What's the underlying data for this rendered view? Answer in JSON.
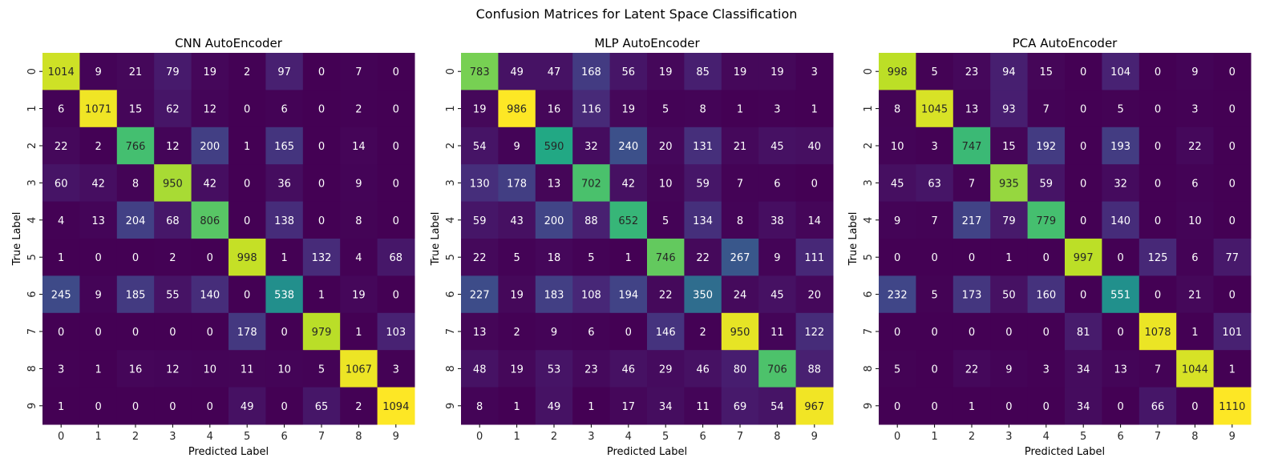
{
  "suptitle": "Confusion Matrices for Latent Space Classification",
  "colors": {
    "colormap": "viridis",
    "light_text": "#ffffff",
    "dark_text": "#262626",
    "axis_text": "#262626"
  },
  "chart_data": [
    {
      "type": "heatmap",
      "title": "CNN AutoEncoder",
      "xlabel": "Predicted Label",
      "ylabel": "True Label",
      "x_ticks": [
        "0",
        "1",
        "2",
        "3",
        "4",
        "5",
        "6",
        "7",
        "8",
        "9"
      ],
      "y_ticks": [
        "0",
        "1",
        "2",
        "3",
        "4",
        "5",
        "6",
        "7",
        "8",
        "9"
      ],
      "vmin": 0,
      "vmax": 1094,
      "matrix": [
        [
          1014,
          9,
          21,
          79,
          19,
          2,
          97,
          0,
          7,
          0
        ],
        [
          6,
          1071,
          15,
          62,
          12,
          0,
          6,
          0,
          2,
          0
        ],
        [
          22,
          2,
          766,
          12,
          200,
          1,
          165,
          0,
          14,
          0
        ],
        [
          60,
          42,
          8,
          950,
          42,
          0,
          36,
          0,
          9,
          0
        ],
        [
          4,
          13,
          204,
          68,
          806,
          0,
          138,
          0,
          8,
          0
        ],
        [
          1,
          0,
          0,
          2,
          0,
          998,
          1,
          132,
          4,
          68
        ],
        [
          245,
          9,
          185,
          55,
          140,
          0,
          538,
          1,
          19,
          0
        ],
        [
          0,
          0,
          0,
          0,
          0,
          178,
          0,
          979,
          1,
          103
        ],
        [
          3,
          1,
          16,
          12,
          10,
          11,
          10,
          5,
          1067,
          3
        ],
        [
          1,
          0,
          0,
          0,
          0,
          49,
          0,
          65,
          2,
          1094
        ]
      ]
    },
    {
      "type": "heatmap",
      "title": "MLP AutoEncoder",
      "xlabel": "Predicted Label",
      "ylabel": "True Label",
      "x_ticks": [
        "0",
        "1",
        "2",
        "3",
        "4",
        "5",
        "6",
        "7",
        "8",
        "9"
      ],
      "y_ticks": [
        "0",
        "1",
        "2",
        "3",
        "4",
        "5",
        "6",
        "7",
        "8",
        "9"
      ],
      "vmin": 0,
      "vmax": 986,
      "matrix": [
        [
          783,
          49,
          47,
          168,
          56,
          19,
          85,
          19,
          19,
          3
        ],
        [
          19,
          986,
          16,
          116,
          19,
          5,
          8,
          1,
          3,
          1
        ],
        [
          54,
          9,
          590,
          32,
          240,
          20,
          131,
          21,
          45,
          40
        ],
        [
          130,
          178,
          13,
          702,
          42,
          10,
          59,
          7,
          6,
          0
        ],
        [
          59,
          43,
          200,
          88,
          652,
          5,
          134,
          8,
          38,
          14
        ],
        [
          22,
          5,
          18,
          5,
          1,
          746,
          22,
          267,
          9,
          111
        ],
        [
          227,
          19,
          183,
          108,
          194,
          22,
          350,
          24,
          45,
          20
        ],
        [
          13,
          2,
          9,
          6,
          0,
          146,
          2,
          950,
          11,
          122
        ],
        [
          48,
          19,
          53,
          23,
          46,
          29,
          46,
          80,
          706,
          88
        ],
        [
          8,
          1,
          49,
          1,
          17,
          34,
          11,
          69,
          54,
          967
        ]
      ]
    },
    {
      "type": "heatmap",
      "title": "PCA AutoEncoder",
      "xlabel": "Predicted Label",
      "ylabel": "True Label",
      "x_ticks": [
        "0",
        "1",
        "2",
        "3",
        "4",
        "5",
        "6",
        "7",
        "8",
        "9"
      ],
      "y_ticks": [
        "0",
        "1",
        "2",
        "3",
        "4",
        "5",
        "6",
        "7",
        "8",
        "9"
      ],
      "vmin": 0,
      "vmax": 1110,
      "matrix": [
        [
          998,
          5,
          23,
          94,
          15,
          0,
          104,
          0,
          9,
          0
        ],
        [
          8,
          1045,
          13,
          93,
          7,
          0,
          5,
          0,
          3,
          0
        ],
        [
          10,
          3,
          747,
          15,
          192,
          0,
          193,
          0,
          22,
          0
        ],
        [
          45,
          63,
          7,
          935,
          59,
          0,
          32,
          0,
          6,
          0
        ],
        [
          9,
          7,
          217,
          79,
          779,
          0,
          140,
          0,
          10,
          0
        ],
        [
          0,
          0,
          0,
          1,
          0,
          997,
          0,
          125,
          6,
          77
        ],
        [
          232,
          5,
          173,
          50,
          160,
          0,
          551,
          0,
          21,
          0
        ],
        [
          0,
          0,
          0,
          0,
          0,
          81,
          0,
          1078,
          1,
          101
        ],
        [
          5,
          0,
          22,
          9,
          3,
          34,
          13,
          7,
          1044,
          1
        ],
        [
          0,
          0,
          1,
          0,
          0,
          34,
          0,
          66,
          0,
          1110
        ]
      ]
    }
  ]
}
